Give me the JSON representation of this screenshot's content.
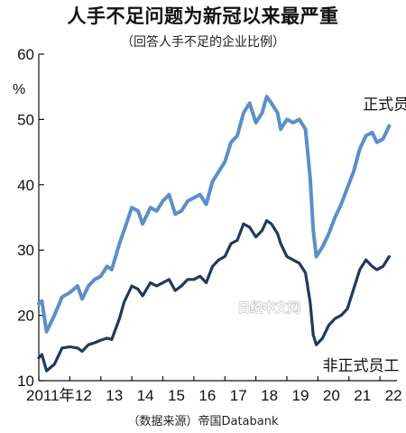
{
  "chart_data": {
    "type": "line",
    "title": "人手不足问题为新冠以来最严重",
    "subtitle": "（回答人手不足的企业比例）",
    "ylabel": "%",
    "ylim": [
      10,
      60
    ],
    "yticks": [
      10,
      20,
      30,
      40,
      50,
      60
    ],
    "xlim": [
      2011.0,
      2022.55
    ],
    "xticks": [
      {
        "value": 2011,
        "label": "2011年"
      },
      {
        "value": 2012,
        "label": "12"
      },
      {
        "value": 2013,
        "label": "13"
      },
      {
        "value": 2014,
        "label": "14"
      },
      {
        "value": 2015,
        "label": "15"
      },
      {
        "value": 2016,
        "label": "16"
      },
      {
        "value": 2017,
        "label": "17"
      },
      {
        "value": 2018,
        "label": "18"
      },
      {
        "value": 2019,
        "label": "19"
      },
      {
        "value": 2020,
        "label": "20"
      },
      {
        "value": 2021,
        "label": "21"
      },
      {
        "value": 2022,
        "label": "22"
      }
    ],
    "grid": false,
    "series": [
      {
        "name": "正式员工",
        "color": "#5b8fc9",
        "points": [
          [
            2011.0,
            21.8
          ],
          [
            2011.1,
            22.2
          ],
          [
            2011.25,
            17.5
          ],
          [
            2011.5,
            20.0
          ],
          [
            2011.75,
            22.8
          ],
          [
            2012.0,
            23.5
          ],
          [
            2012.25,
            24.5
          ],
          [
            2012.4,
            22.5
          ],
          [
            2012.6,
            24.5
          ],
          [
            2012.8,
            25.5
          ],
          [
            2013.0,
            26.0
          ],
          [
            2013.2,
            27.5
          ],
          [
            2013.35,
            27.0
          ],
          [
            2013.6,
            31.0
          ],
          [
            2013.75,
            33.0
          ],
          [
            2014.0,
            36.5
          ],
          [
            2014.2,
            36.0
          ],
          [
            2014.35,
            34.0
          ],
          [
            2014.6,
            36.5
          ],
          [
            2014.8,
            36.0
          ],
          [
            2015.0,
            37.5
          ],
          [
            2015.2,
            38.5
          ],
          [
            2015.4,
            35.5
          ],
          [
            2015.6,
            36.0
          ],
          [
            2015.8,
            37.5
          ],
          [
            2016.0,
            38.0
          ],
          [
            2016.2,
            38.5
          ],
          [
            2016.4,
            37.0
          ],
          [
            2016.6,
            40.5
          ],
          [
            2016.8,
            42.0
          ],
          [
            2017.0,
            43.5
          ],
          [
            2017.2,
            46.5
          ],
          [
            2017.4,
            47.5
          ],
          [
            2017.6,
            51.0
          ],
          [
            2017.8,
            52.5
          ],
          [
            2018.0,
            49.5
          ],
          [
            2018.2,
            51.0
          ],
          [
            2018.35,
            53.5
          ],
          [
            2018.5,
            52.5
          ],
          [
            2018.7,
            51.0
          ],
          [
            2018.8,
            48.5
          ],
          [
            2019.0,
            50.0
          ],
          [
            2019.2,
            49.5
          ],
          [
            2019.4,
            50.0
          ],
          [
            2019.6,
            48.5
          ],
          [
            2019.75,
            41.0
          ],
          [
            2019.85,
            33.0
          ],
          [
            2019.95,
            29.0
          ],
          [
            2020.15,
            30.5
          ],
          [
            2020.35,
            32.5
          ],
          [
            2020.55,
            35.0
          ],
          [
            2020.75,
            37.0
          ],
          [
            2020.95,
            39.5
          ],
          [
            2021.15,
            42.0
          ],
          [
            2021.35,
            45.5
          ],
          [
            2021.55,
            47.5
          ],
          [
            2021.75,
            48.0
          ],
          [
            2021.9,
            46.5
          ],
          [
            2022.1,
            47.0
          ],
          [
            2022.3,
            49.0
          ]
        ]
      },
      {
        "name": "非正式员工",
        "color": "#1f3a5f",
        "points": [
          [
            2011.0,
            13.5
          ],
          [
            2011.1,
            14.0
          ],
          [
            2011.25,
            11.5
          ],
          [
            2011.5,
            12.5
          ],
          [
            2011.75,
            15.0
          ],
          [
            2012.0,
            15.2
          ],
          [
            2012.25,
            15.0
          ],
          [
            2012.4,
            14.5
          ],
          [
            2012.6,
            15.5
          ],
          [
            2012.8,
            15.8
          ],
          [
            2013.0,
            16.2
          ],
          [
            2013.2,
            16.5
          ],
          [
            2013.35,
            16.3
          ],
          [
            2013.6,
            19.5
          ],
          [
            2013.75,
            22.0
          ],
          [
            2014.0,
            24.5
          ],
          [
            2014.2,
            24.0
          ],
          [
            2014.35,
            23.0
          ],
          [
            2014.6,
            25.0
          ],
          [
            2014.8,
            24.5
          ],
          [
            2015.0,
            25.0
          ],
          [
            2015.2,
            25.5
          ],
          [
            2015.4,
            23.8
          ],
          [
            2015.6,
            24.5
          ],
          [
            2015.8,
            25.5
          ],
          [
            2016.0,
            25.5
          ],
          [
            2016.2,
            26.0
          ],
          [
            2016.4,
            25.0
          ],
          [
            2016.6,
            27.5
          ],
          [
            2016.8,
            28.5
          ],
          [
            2017.0,
            29.0
          ],
          [
            2017.2,
            31.0
          ],
          [
            2017.4,
            31.5
          ],
          [
            2017.6,
            34.0
          ],
          [
            2017.8,
            33.5
          ],
          [
            2018.0,
            32.0
          ],
          [
            2018.2,
            33.0
          ],
          [
            2018.35,
            34.5
          ],
          [
            2018.5,
            34.0
          ],
          [
            2018.7,
            32.5
          ],
          [
            2018.8,
            31.0
          ],
          [
            2019.0,
            29.0
          ],
          [
            2019.2,
            28.5
          ],
          [
            2019.4,
            28.0
          ],
          [
            2019.6,
            26.5
          ],
          [
            2019.75,
            22.0
          ],
          [
            2019.85,
            17.0
          ],
          [
            2019.95,
            15.5
          ],
          [
            2020.15,
            16.5
          ],
          [
            2020.35,
            18.5
          ],
          [
            2020.55,
            19.5
          ],
          [
            2020.75,
            20.0
          ],
          [
            2020.95,
            21.0
          ],
          [
            2021.15,
            24.0
          ],
          [
            2021.35,
            27.0
          ],
          [
            2021.55,
            28.5
          ],
          [
            2021.75,
            27.5
          ],
          [
            2021.9,
            27.0
          ],
          [
            2022.1,
            27.5
          ],
          [
            2022.3,
            29.0
          ]
        ]
      }
    ],
    "series_labels": [
      {
        "text": "正式员工",
        "x": 2021.45,
        "y": 51.5
      },
      {
        "text": "非正式员工",
        "x": 2020.15,
        "y": 11.5
      }
    ],
    "source": "（数据来源）帝国Databank",
    "watermark": "日经中文网"
  }
}
